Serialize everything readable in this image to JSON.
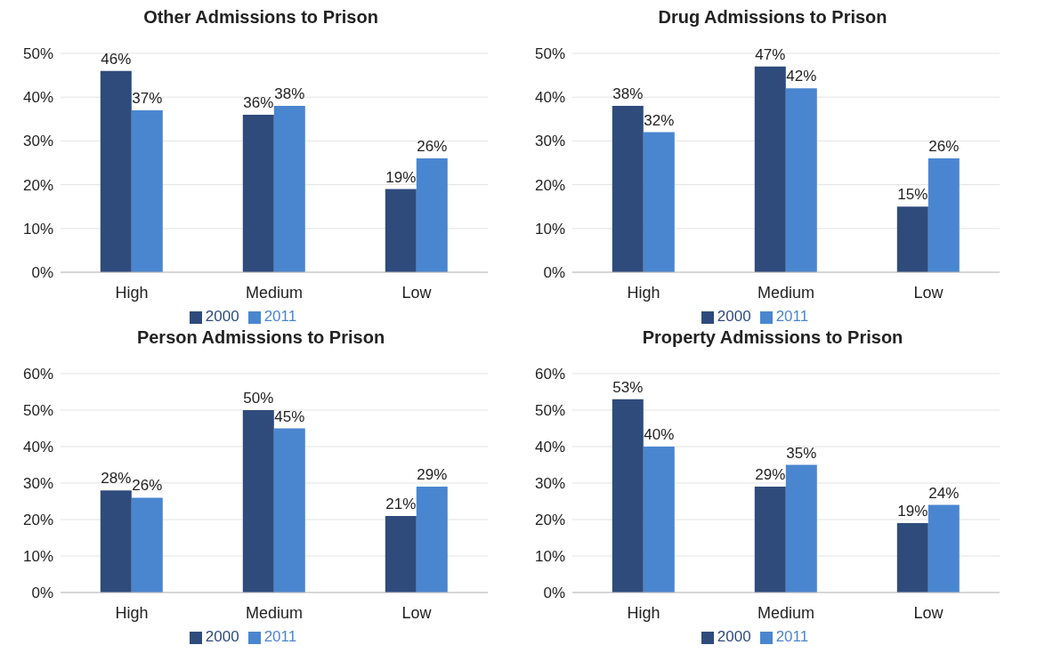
{
  "chart_data": [
    {
      "type": "bar",
      "title": "Other Admissions to Prison",
      "categories": [
        "High",
        "Medium",
        "Low"
      ],
      "series": [
        {
          "name": "2000",
          "color": "#2e4b7c",
          "values": [
            46,
            36,
            19
          ],
          "value_labels": [
            "46%",
            "36%",
            "19%"
          ]
        },
        {
          "name": "2011",
          "color": "#4a86cf",
          "values": [
            37,
            38,
            26
          ],
          "value_labels": [
            "37%",
            "38%",
            "26%"
          ]
        }
      ],
      "ylim": [
        0,
        50
      ],
      "yticks": [
        {
          "value": 0,
          "label": "0%"
        },
        {
          "value": 10,
          "label": "10%"
        },
        {
          "value": 20,
          "label": "20%"
        },
        {
          "value": 30,
          "label": "30%"
        },
        {
          "value": 40,
          "label": "40%"
        },
        {
          "value": 50,
          "label": "50%"
        }
      ],
      "grid": "y",
      "legend": "bottom"
    },
    {
      "type": "bar",
      "title": "Drug Admissions to Prison",
      "categories": [
        "High",
        "Medium",
        "Low"
      ],
      "series": [
        {
          "name": "2000",
          "color": "#2e4b7c",
          "values": [
            38,
            47,
            15
          ],
          "value_labels": [
            "38%",
            "47%",
            "15%"
          ]
        },
        {
          "name": "2011",
          "color": "#4a86cf",
          "values": [
            32,
            42,
            26
          ],
          "value_labels": [
            "32%",
            "42%",
            "26%"
          ]
        }
      ],
      "ylim": [
        0,
        50
      ],
      "yticks": [
        {
          "value": 0,
          "label": "0%"
        },
        {
          "value": 10,
          "label": "10%"
        },
        {
          "value": 20,
          "label": "20%"
        },
        {
          "value": 30,
          "label": "30%"
        },
        {
          "value": 40,
          "label": "40%"
        },
        {
          "value": 50,
          "label": "50%"
        }
      ],
      "grid": "y",
      "legend": "bottom"
    },
    {
      "type": "bar",
      "title": "Person Admissions to Prison",
      "categories": [
        "High",
        "Medium",
        "Low"
      ],
      "series": [
        {
          "name": "2000",
          "color": "#2e4b7c",
          "values": [
            28,
            50,
            21
          ],
          "value_labels": [
            "28%",
            "50%",
            "21%"
          ]
        },
        {
          "name": "2011",
          "color": "#4a86cf",
          "values": [
            26,
            45,
            29
          ],
          "value_labels": [
            "26%",
            "45%",
            "29%"
          ]
        }
      ],
      "ylim": [
        0,
        60
      ],
      "yticks": [
        {
          "value": 0,
          "label": "0%"
        },
        {
          "value": 10,
          "label": "10%"
        },
        {
          "value": 20,
          "label": "20%"
        },
        {
          "value": 30,
          "label": "30%"
        },
        {
          "value": 40,
          "label": "40%"
        },
        {
          "value": 50,
          "label": "50%"
        },
        {
          "value": 60,
          "label": "60%"
        }
      ],
      "grid": "y",
      "legend": "bottom"
    },
    {
      "type": "bar",
      "title": "Property Admissions to Prison",
      "categories": [
        "High",
        "Medium",
        "Low"
      ],
      "series": [
        {
          "name": "2000",
          "color": "#2e4b7c",
          "values": [
            53,
            29,
            19
          ],
          "value_labels": [
            "53%",
            "29%",
            "19%"
          ]
        },
        {
          "name": "2011",
          "color": "#4a86cf",
          "values": [
            40,
            35,
            24
          ],
          "value_labels": [
            "40%",
            "35%",
            "24%"
          ]
        }
      ],
      "ylim": [
        0,
        60
      ],
      "yticks": [
        {
          "value": 0,
          "label": "0%"
        },
        {
          "value": 10,
          "label": "10%"
        },
        {
          "value": 20,
          "label": "20%"
        },
        {
          "value": 30,
          "label": "30%"
        },
        {
          "value": 40,
          "label": "40%"
        },
        {
          "value": 50,
          "label": "50%"
        },
        {
          "value": 60,
          "label": "60%"
        }
      ],
      "grid": "y",
      "legend": "bottom"
    }
  ]
}
